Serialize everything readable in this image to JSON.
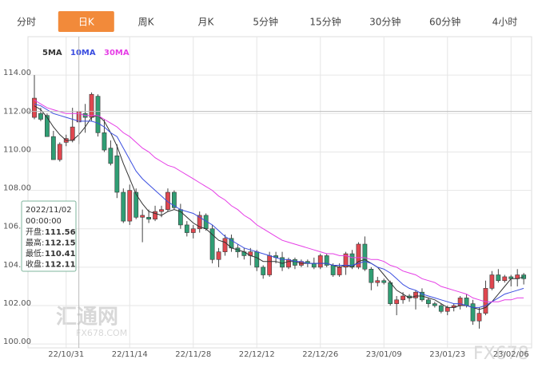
{
  "tabs": [
    "分时",
    "日K",
    "周K",
    "月K",
    "5分钟",
    "15分钟",
    "30分钟",
    "60分钟",
    "4小时"
  ],
  "active_tab": 1,
  "watermark": {
    "brand": "汇通网",
    "site": "FX678.COM",
    "corner": "FX678"
  },
  "chart_data": {
    "type": "candlestick",
    "categories": [
      null,
      null,
      null,
      null,
      null,
      "22/10/31",
      null,
      null,
      null,
      null,
      null,
      null,
      null,
      null,
      null,
      "22/11/14",
      null,
      null,
      null,
      null,
      null,
      null,
      null,
      null,
      null,
      "22/11/28",
      null,
      null,
      null,
      null,
      null,
      null,
      null,
      null,
      null,
      "22/12/12",
      null,
      null,
      null,
      null,
      null,
      null,
      null,
      null,
      null,
      "22/12/26",
      null,
      null,
      null,
      null,
      null,
      null,
      null,
      null,
      null,
      "23/01/09",
      null,
      null,
      null,
      null,
      null,
      null,
      null,
      null,
      null,
      "23/01/23",
      null,
      null,
      null,
      null,
      null,
      null,
      null,
      null,
      null,
      "23/02/06",
      null,
      null
    ],
    "open": [
      111.8,
      112.0,
      111.9,
      110.8,
      109.6,
      110.5,
      110.6,
      111.56,
      112.0,
      111.8,
      112.9,
      111.0,
      110.2,
      109.8,
      107.9,
      106.4,
      107.9,
      106.6,
      106.6,
      106.5,
      106.9,
      107.0,
      107.9,
      107.0,
      106.2,
      105.8,
      106.0,
      106.7,
      106.0,
      104.4,
      104.8,
      105.5,
      105.0,
      104.8,
      104.6,
      104.8,
      104.0,
      103.6,
      104.6,
      104.5,
      104.0,
      104.4,
      104.1,
      104.3,
      104.2,
      104.0,
      104.6,
      104.1,
      103.6,
      104.0,
      104.7,
      104.0,
      105.2,
      103.9,
      103.2,
      103.3,
      103.2,
      102.1,
      102.3,
      102.5,
      102.4,
      102.7,
      102.3,
      102.1,
      102.0,
      101.7,
      101.9,
      102.0,
      102.4,
      102.1,
      101.2,
      101.6,
      102.9,
      103.6,
      103.3,
      103.5,
      103.4,
      103.6
    ],
    "high": [
      114.0,
      112.3,
      112.0,
      111.1,
      110.5,
      110.9,
      112.3,
      112.15,
      112.5,
      113.1,
      113.0,
      111.7,
      110.6,
      110.4,
      108.1,
      108.3,
      108.1,
      107.0,
      107.0,
      107.2,
      107.2,
      108.1,
      108.0,
      107.3,
      106.4,
      106.2,
      106.9,
      106.8,
      106.2,
      105.0,
      105.7,
      105.7,
      105.2,
      105.0,
      105.0,
      104.9,
      104.1,
      104.8,
      104.8,
      104.8,
      104.5,
      104.5,
      104.4,
      104.4,
      104.5,
      104.7,
      104.7,
      104.2,
      104.2,
      104.8,
      104.9,
      105.3,
      105.6,
      104.0,
      103.5,
      103.4,
      103.3,
      102.5,
      102.7,
      102.6,
      102.8,
      102.9,
      102.4,
      102.2,
      102.1,
      102.0,
      102.1,
      102.5,
      102.6,
      102.3,
      101.9,
      103.3,
      103.8,
      103.9,
      103.6,
      103.6,
      103.9,
      103.7
    ],
    "low": [
      111.7,
      111.6,
      110.8,
      109.6,
      109.5,
      110.3,
      110.5,
      110.41,
      111.0,
      111.6,
      110.8,
      110.0,
      109.3,
      107.6,
      106.3,
      106.2,
      106.5,
      105.3,
      106.3,
      106.4,
      106.6,
      106.9,
      107.0,
      106.0,
      105.6,
      105.5,
      105.8,
      105.9,
      104.2,
      104.0,
      104.6,
      104.8,
      104.5,
      104.4,
      104.1,
      103.8,
      103.4,
      103.5,
      104.2,
      103.8,
      103.9,
      103.9,
      104.0,
      104.0,
      103.9,
      103.9,
      104.0,
      103.5,
      103.5,
      103.6,
      103.9,
      103.9,
      103.8,
      102.8,
      103.0,
      103.1,
      102.0,
      101.5,
      102.1,
      102.2,
      101.8,
      102.2,
      101.9,
      101.9,
      101.6,
      101.5,
      101.7,
      101.8,
      101.9,
      101.0,
      100.8,
      101.5,
      102.8,
      103.2,
      103.2,
      103.0,
      103.0,
      103.1
    ],
    "close": [
      112.8,
      111.7,
      110.8,
      109.6,
      110.4,
      110.7,
      111.3,
      112.11,
      111.8,
      113.0,
      111.0,
      110.1,
      109.4,
      107.9,
      106.4,
      108.0,
      106.6,
      106.7,
      106.5,
      106.9,
      107.0,
      107.9,
      107.1,
      106.2,
      105.8,
      106.0,
      106.7,
      106.0,
      104.4,
      104.8,
      105.5,
      105.0,
      104.8,
      104.6,
      104.8,
      104.0,
      103.6,
      104.6,
      104.5,
      104.0,
      104.4,
      104.1,
      104.3,
      104.2,
      104.0,
      104.6,
      104.1,
      103.6,
      104.0,
      104.7,
      104.0,
      105.2,
      103.9,
      103.2,
      103.3,
      103.2,
      102.1,
      102.3,
      102.5,
      102.4,
      102.7,
      102.3,
      102.1,
      102.0,
      101.7,
      101.9,
      102.0,
      102.4,
      102.0,
      101.2,
      101.6,
      102.9,
      103.6,
      103.3,
      103.5,
      103.4,
      103.6,
      103.4
    ],
    "up_color": "#e0474f",
    "down_color": "#2f9e74",
    "series": [
      {
        "name": "5MA",
        "color": "#333333",
        "values": [
          112.4,
          112.2,
          111.8,
          111.3,
          110.9,
          110.6,
          110.6,
          110.9,
          111.3,
          111.8,
          111.9,
          111.6,
          111.0,
          110.3,
          109.4,
          108.6,
          107.8,
          107.3,
          106.9,
          106.8,
          106.7,
          106.9,
          107.0,
          106.9,
          106.6,
          106.3,
          106.1,
          106.0,
          105.7,
          105.4,
          105.3,
          105.0,
          104.9,
          104.8,
          104.6,
          104.5,
          104.3,
          104.3,
          104.3,
          104.2,
          104.3,
          104.3,
          104.2,
          104.2,
          104.2,
          104.2,
          104.2,
          104.1,
          104.0,
          104.1,
          104.0,
          104.3,
          104.4,
          104.2,
          104.0,
          103.6,
          103.2,
          102.8,
          102.6,
          102.4,
          102.5,
          102.5,
          102.4,
          102.3,
          102.1,
          101.9,
          101.9,
          102.0,
          102.0,
          101.9,
          101.8,
          101.9,
          102.2,
          102.6,
          103.0,
          103.4,
          103.4,
          103.5
        ]
      },
      {
        "name": "10MA",
        "color": "#3b4ee0",
        "values": [
          112.5,
          112.4,
          112.2,
          112.0,
          111.9,
          111.8,
          111.7,
          111.6,
          111.6,
          111.6,
          111.5,
          111.3,
          111.0,
          110.8,
          110.2,
          109.6,
          109.0,
          108.6,
          108.3,
          108.0,
          107.7,
          107.4,
          107.2,
          107.0,
          106.9,
          106.8,
          106.6,
          106.4,
          106.2,
          105.9,
          105.6,
          105.4,
          105.2,
          105.0,
          104.9,
          104.8,
          104.7,
          104.6,
          104.5,
          104.4,
          104.4,
          104.3,
          104.3,
          104.2,
          104.2,
          104.2,
          104.2,
          104.1,
          104.1,
          104.1,
          104.1,
          104.2,
          104.3,
          104.2,
          104.0,
          103.9,
          103.7,
          103.4,
          103.1,
          102.9,
          102.8,
          102.6,
          102.5,
          102.4,
          102.3,
          102.2,
          102.1,
          102.1,
          102.0,
          101.9,
          101.9,
          102.0,
          102.2,
          102.4,
          102.6,
          102.7,
          102.8,
          102.9
        ]
      },
      {
        "name": "30MA",
        "color": "#e63ee6",
        "values": [
          112.7,
          112.5,
          112.3,
          112.2,
          112.1,
          112.0,
          112.0,
          112.0,
          111.9,
          111.9,
          111.9,
          111.7,
          111.5,
          111.3,
          111.0,
          110.8,
          110.5,
          110.2,
          110.0,
          109.7,
          109.5,
          109.3,
          109.2,
          109.0,
          108.8,
          108.6,
          108.4,
          108.2,
          108.0,
          107.7,
          107.5,
          107.2,
          107.0,
          106.7,
          106.5,
          106.2,
          106.0,
          105.8,
          105.6,
          105.4,
          105.3,
          105.2,
          105.1,
          105.0,
          104.9,
          104.8,
          104.7,
          104.7,
          104.6,
          104.6,
          104.5,
          104.5,
          104.5,
          104.4,
          104.4,
          104.3,
          104.1,
          104.0,
          103.8,
          103.7,
          103.6,
          103.4,
          103.3,
          103.2,
          103.0,
          102.9,
          102.8,
          102.7,
          102.6,
          102.4,
          102.3,
          102.2,
          102.2,
          102.2,
          102.3,
          102.3,
          102.4,
          102.4
        ]
      }
    ],
    "ylim": [
      99.8,
      116
    ],
    "yticks": [
      {
        "value": 100,
        "label": "100.00"
      },
      {
        "value": 102,
        "label": "102.00"
      },
      {
        "value": 104,
        "label": "104.00"
      },
      {
        "value": 106,
        "label": "106.00"
      },
      {
        "value": 108,
        "label": "108.00"
      },
      {
        "value": 110,
        "label": "110.00"
      },
      {
        "value": 112,
        "label": "112.00"
      },
      {
        "value": 114,
        "label": "114.00"
      }
    ],
    "grid": true,
    "tooltip": {
      "index": 7,
      "date": "2022/11/02",
      "time": "00:00:00",
      "labels": [
        "开盘:",
        "最高:",
        "最低:",
        "收盘:"
      ]
    }
  }
}
